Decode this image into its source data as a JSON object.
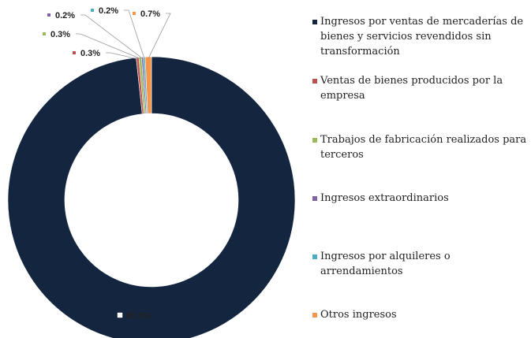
{
  "chart_data": {
    "type": "donut",
    "categories": [
      "Ingresos por ventas de mercaderías de bienes y servicios revendidos sin transformación",
      "Ventas de bienes producidos por la empresa",
      "Trabajos de fabricación realizados para terceros",
      "Ingresos extraordinarios",
      "Ingresos por alquileres o arrendamientos",
      "Otros ingresos"
    ],
    "values": [
      98.3,
      0.3,
      0.3,
      0.2,
      0.2,
      0.7
    ],
    "value_labels": [
      "98.3%",
      "0.3%",
      "0.3%",
      "0.2%",
      "0.2%",
      "0.7%"
    ],
    "colors": [
      "#14253f",
      "#c0504d",
      "#9bbb59",
      "#8064a2",
      "#4bacc6",
      "#f79646"
    ],
    "legend": "right"
  }
}
